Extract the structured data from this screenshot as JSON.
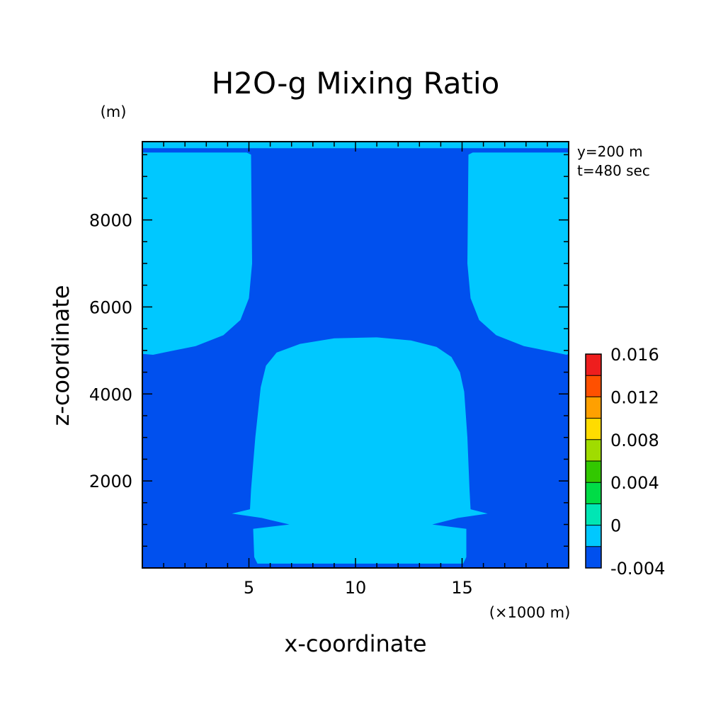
{
  "chart_data": {
    "type": "heatmap",
    "title": "H2O-g Mixing Ratio",
    "xlabel": "x-coordinate",
    "ylabel": "z-coordinate",
    "x_unit": "(×1000 m)",
    "y_unit": "(m)",
    "annotations": [
      "y=200 m",
      "t=480 sec"
    ],
    "xlim": [
      0,
      20
    ],
    "ylim": [
      0,
      9800
    ],
    "x_ticks": [
      5,
      10,
      15
    ],
    "x_tick_labels": [
      "5",
      "10",
      "15"
    ],
    "y_ticks": [
      2000,
      4000,
      6000,
      8000
    ],
    "y_tick_labels": [
      "2000",
      "4000",
      "6000",
      "8000"
    ],
    "background_level_color": "#0050ee",
    "regions": [
      {
        "name": "upper-left-region",
        "color": "#00c8ff",
        "points": [
          [
            0,
            9550
          ],
          [
            4.9,
            9550
          ],
          [
            5.1,
            9500
          ],
          [
            5.15,
            7000
          ],
          [
            5.0,
            6200
          ],
          [
            4.6,
            5700
          ],
          [
            3.8,
            5350
          ],
          [
            2.5,
            5100
          ],
          [
            1.0,
            4950
          ],
          [
            0.5,
            4900
          ],
          [
            0,
            4920
          ]
        ]
      },
      {
        "name": "upper-right-region",
        "color": "#00c8ff",
        "points": [
          [
            20,
            9550
          ],
          [
            15.5,
            9550
          ],
          [
            15.3,
            9500
          ],
          [
            15.25,
            7000
          ],
          [
            15.4,
            6200
          ],
          [
            15.8,
            5700
          ],
          [
            16.6,
            5350
          ],
          [
            17.9,
            5100
          ],
          [
            19.4,
            4950
          ],
          [
            19.9,
            4900
          ],
          [
            20,
            4920
          ]
        ]
      },
      {
        "name": "central-region",
        "color": "#00c8ff",
        "points": [
          [
            5.4,
            100
          ],
          [
            5.25,
            250
          ],
          [
            5.2,
            900
          ],
          [
            6.9,
            1000
          ],
          [
            5.6,
            1150
          ],
          [
            4.2,
            1250
          ],
          [
            5.05,
            1350
          ],
          [
            5.1,
            1800
          ],
          [
            5.3,
            3000
          ],
          [
            5.55,
            4150
          ],
          [
            5.8,
            4650
          ],
          [
            6.3,
            4950
          ],
          [
            7.4,
            5150
          ],
          [
            9.0,
            5280
          ],
          [
            11.0,
            5300
          ],
          [
            12.6,
            5230
          ],
          [
            13.8,
            5080
          ],
          [
            14.5,
            4850
          ],
          [
            14.9,
            4500
          ],
          [
            15.1,
            4050
          ],
          [
            15.25,
            3000
          ],
          [
            15.35,
            1800
          ],
          [
            15.4,
            1350
          ],
          [
            16.2,
            1250
          ],
          [
            14.8,
            1150
          ],
          [
            13.6,
            1000
          ],
          [
            15.2,
            900
          ],
          [
            15.2,
            250
          ],
          [
            15.05,
            100
          ]
        ]
      },
      {
        "name": "top-band",
        "color": "#00c8ff",
        "points": [
          [
            0,
            9650
          ],
          [
            20,
            9650
          ],
          [
            20,
            9800
          ],
          [
            0,
            9800
          ]
        ]
      }
    ],
    "colorbar": {
      "labels": [
        "0.016",
        "0.012",
        "0.008",
        "0.004",
        "0",
        "-0.004"
      ],
      "label_values": [
        0.016,
        0.012,
        0.008,
        0.004,
        0,
        -0.004
      ],
      "levels": [
        -0.004,
        -0.002,
        0,
        0.002,
        0.004,
        0.006,
        0.008,
        0.01,
        0.012,
        0.014,
        0.016
      ],
      "colors": [
        "#0000b4",
        "#0050ee",
        "#00c8ff",
        "#00e6b4",
        "#00dc46",
        "#32c800",
        "#a0dc00",
        "#ffdc00",
        "#ffa000",
        "#ff5000",
        "#ee1e1e"
      ]
    }
  }
}
